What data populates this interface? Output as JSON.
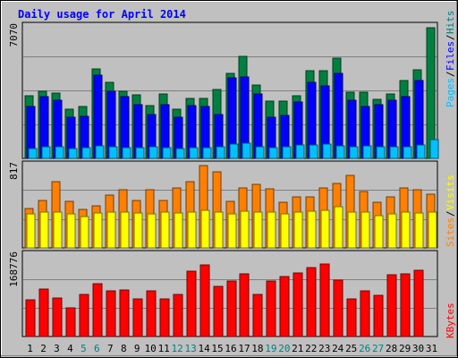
{
  "chart_data": {
    "type": "bar",
    "title": "Daily usage for April 2014",
    "categories": [
      "1",
      "2",
      "3",
      "4",
      "5",
      "6",
      "7",
      "8",
      "9",
      "10",
      "11",
      "12",
      "13",
      "14",
      "15",
      "16",
      "17",
      "18",
      "19",
      "20",
      "21",
      "22",
      "23",
      "24",
      "25",
      "26",
      "27",
      "28",
      "29",
      "30",
      "31"
    ],
    "weekend_days": [
      "5",
      "6",
      "12",
      "13",
      "19",
      "20",
      "26",
      "27"
    ],
    "panels": [
      {
        "id": "hits-files-pages",
        "ymax_label": "7070",
        "ymax": 7070,
        "legend": [
          {
            "text": "Pages",
            "color": "#00c0ff"
          },
          {
            "text": "Files",
            "color": "#0000ff"
          },
          {
            "text": "Hits",
            "color": "#008080"
          }
        ],
        "series": [
          {
            "name": "Hits",
            "color": "#008040",
            "values": [
              3340,
              3580,
              3480,
              2620,
              2760,
              4770,
              4060,
              3600,
              3400,
              2840,
              3460,
              2640,
              3220,
              3220,
              3700,
              4560,
              5430,
              3920,
              3050,
              3050,
              3360,
              4660,
              4680,
              5350,
              3550,
              3550,
              3130,
              3450,
              4140,
              4750,
              6970
            ]
          },
          {
            "name": "Files",
            "color": "#0000ff",
            "values": [
              2750,
              3300,
              3100,
              2200,
              2240,
              4450,
              3600,
              3280,
              2860,
              2320,
              2870,
              2200,
              2820,
              2780,
              2340,
              4280,
              4360,
              3450,
              2220,
              2280,
              2990,
              4070,
              3880,
              4520,
              3100,
              2780,
              2860,
              3100,
              3320,
              4170,
              0
            ]
          },
          {
            "name": "Pages",
            "color": "#00c0ff",
            "values": [
              530,
              610,
              600,
              520,
              560,
              650,
              610,
              570,
              560,
              600,
              590,
              520,
              560,
              560,
              620,
              770,
              810,
              620,
              560,
              600,
              730,
              710,
              750,
              660,
              620,
              650,
              630,
              620,
              640,
              710,
              1010
            ]
          }
        ]
      },
      {
        "id": "visits-sites",
        "ymax_label": "817",
        "ymax": 817,
        "legend": [
          {
            "text": "Sites",
            "color": "#ff8000"
          },
          {
            "text": "Visits",
            "color": "#ffff00"
          }
        ],
        "series": [
          {
            "name": "Visits",
            "color": "#ff8000",
            "values": [
              390,
              465,
              650,
              460,
              378,
              410,
              515,
              572,
              465,
              570,
              465,
              585,
              650,
              810,
              750,
              458,
              588,
              620,
              580,
              450,
              504,
              498,
              585,
              630,
              715,
              550,
              448,
              505,
              585,
              568,
              530
            ]
          },
          {
            "name": "Sites",
            "color": "#ffff00",
            "values": [
              330,
              350,
              350,
              330,
              310,
              340,
              350,
              350,
              340,
              330,
              350,
              340,
              350,
              370,
              350,
              330,
              360,
              350,
              350,
              330,
              350,
              360,
              370,
              400,
              350,
              350,
              320,
              330,
              350,
              340,
              350
            ]
          }
        ]
      },
      {
        "id": "kbytes",
        "ymax_label": "168776",
        "ymax": 168776,
        "legend": [
          {
            "text": "KBytes",
            "color": "#ff0000"
          }
        ],
        "series": [
          {
            "name": "KBytes",
            "color": "#ff0000",
            "values": [
              75600,
              97000,
              79600,
              58000,
              85500,
              108000,
              94000,
              95400,
              76300,
              94000,
              76300,
              85500,
              134000,
              146000,
              102000,
              113400,
              128000,
              86400,
              113400,
              122000,
              130000,
              141600,
              149000,
              115700,
              76300,
              94000,
              84000,
              127000,
              129300,
              136000,
              0
            ]
          }
        ]
      }
    ]
  }
}
